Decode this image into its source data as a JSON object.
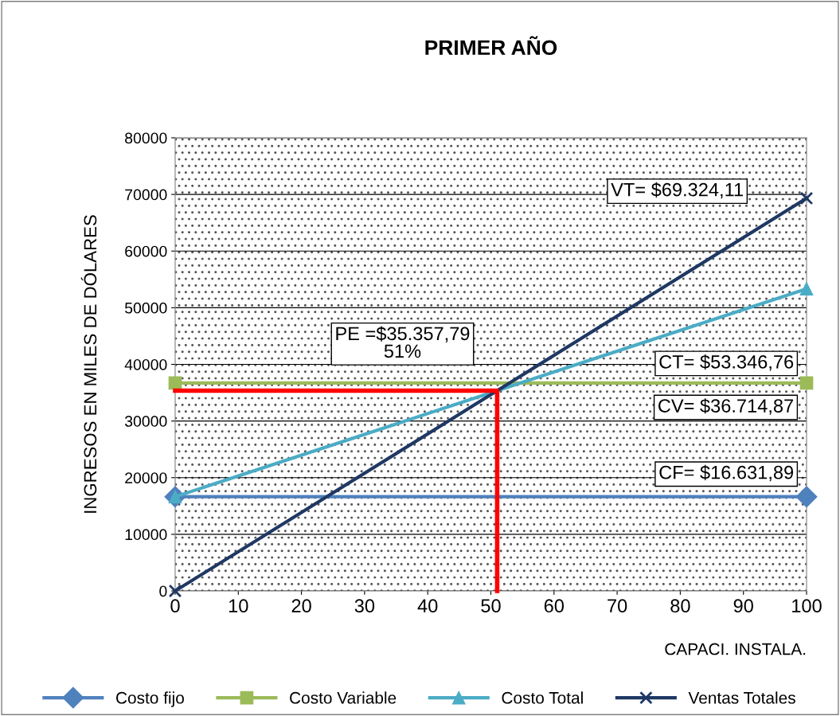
{
  "chart_data": {
    "type": "line",
    "title": "PRIMER AÑO",
    "xlabel": "CAPACI. INSTALA.",
    "ylabel": "INGRESOS EN MILES DE DÓLARES",
    "x": [
      0,
      100
    ],
    "xlim": [
      0,
      100
    ],
    "xticks": [
      0,
      10,
      20,
      30,
      40,
      50,
      60,
      70,
      80,
      90,
      100
    ],
    "ylim": [
      0,
      80000
    ],
    "yticks": [
      0,
      10000,
      20000,
      30000,
      40000,
      50000,
      60000,
      70000,
      80000
    ],
    "grid": "y",
    "legend": "bottom",
    "series": [
      {
        "name": "Costo fijo",
        "color": "#4f81bd",
        "marker": "diamond",
        "values": [
          16631.89,
          16631.89
        ]
      },
      {
        "name": "Costo Variable",
        "color": "#9bbb59",
        "marker": "square",
        "values": [
          36714.87,
          36714.87
        ]
      },
      {
        "name": "Costo Total",
        "color": "#4bacc6",
        "marker": "triangle",
        "values": [
          16631.89,
          53346.76
        ]
      },
      {
        "name": "Ventas Totales",
        "color": "#1f3864",
        "marker": "cross",
        "values": [
          0,
          69324.11
        ]
      },
      {
        "type": "step",
        "color": "#ff0000",
        "marker": "none",
        "x": [
          0,
          51
        ],
        "values": [
          35357.79,
          0
        ]
      }
    ],
    "annotations": [
      "VT= $69.324,11",
      "PE =$35.357,79\n51%",
      "CT= $53.346,76",
      "CV= $36.714,87",
      "CF= $16.631,89"
    ]
  }
}
